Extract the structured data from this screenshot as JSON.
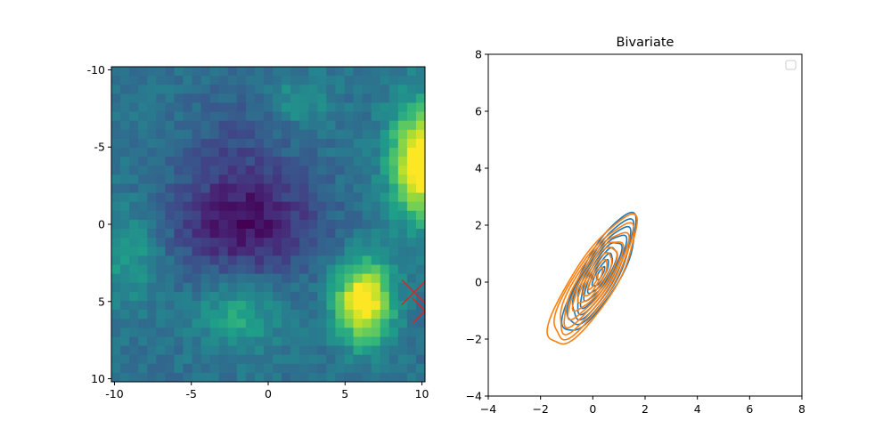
{
  "chart_data": [
    {
      "type": "heatmap",
      "title": "",
      "xlabel": "",
      "ylabel": "",
      "colormap": "viridis",
      "x_range": [
        -10.2,
        10.2
      ],
      "y_range": [
        10.2,
        -10.2
      ],
      "y_inverted": true,
      "x_ticks": [
        -10,
        -5,
        0,
        5,
        10
      ],
      "x_tick_labels": [
        "-10",
        "-5",
        "0",
        "5",
        "10"
      ],
      "y_ticks": [
        -10,
        -5,
        0,
        5,
        10
      ],
      "y_tick_labels": [
        "-10",
        "-5",
        "0",
        "5",
        "10"
      ],
      "grid": false,
      "hotspots": [
        {
          "name": "upper-right bright region",
          "x": 9.8,
          "y": -4.0,
          "level": 1.0
        },
        {
          "name": "lower bright region",
          "x": 6.0,
          "y": 4.8,
          "level": 1.0
        },
        {
          "name": "left-lower green region",
          "x": -2.0,
          "y": 6.0,
          "level": 0.62
        },
        {
          "name": "dark central region",
          "x": -1.5,
          "y": 0.0,
          "level": 0.05
        }
      ],
      "markers": [
        {
          "symbol": "x",
          "x": 9.5,
          "y": 4.4,
          "color": "#d62728"
        },
        {
          "symbol": "x",
          "x": 10.2,
          "y": 5.6,
          "color": "#d62728"
        }
      ]
    },
    {
      "type": "contour",
      "title": "Bivariate",
      "xlabel": "",
      "ylabel": "",
      "xlim": [
        -4,
        8
      ],
      "ylim": [
        -4,
        8
      ],
      "x_ticks": [
        -4,
        -2,
        0,
        2,
        4,
        6,
        8
      ],
      "x_tick_labels": [
        "−4",
        "−2",
        "0",
        "2",
        "4",
        "6",
        "8"
      ],
      "y_ticks": [
        -4,
        -2,
        0,
        2,
        4,
        6,
        8
      ],
      "y_tick_labels": [
        "−4",
        "−2",
        "0",
        "2",
        "4",
        "6",
        "8"
      ],
      "grid": false,
      "legend": {
        "location": "upper right",
        "entries": []
      },
      "series": [
        {
          "color": "#1f77b4",
          "center": [
            0.3,
            0.3
          ],
          "rotation_deg": 58,
          "outer_semi_axes": [
            4.8,
            1.4
          ],
          "levels": 9
        },
        {
          "color": "#ff7f0e",
          "center": [
            0.0,
            0.0
          ],
          "rotation_deg": 55,
          "outer_semi_axes": [
            5.4,
            1.6
          ],
          "levels": 9
        }
      ]
    }
  ]
}
